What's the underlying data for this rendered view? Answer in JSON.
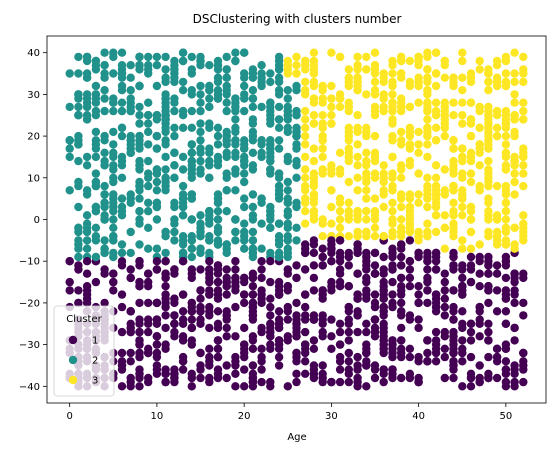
{
  "chart_data": {
    "type": "scatter",
    "title": "DSClustering with clusters number",
    "xlabel": "Age",
    "ylabel": "",
    "xlim": [
      -2.6,
      54.6
    ],
    "ylim": [
      -44,
      44
    ],
    "xticks": [
      0,
      10,
      20,
      30,
      40,
      50
    ],
    "yticks": [
      -40,
      -30,
      -20,
      -10,
      0,
      10,
      20,
      30,
      40
    ],
    "grid": false,
    "legend": {
      "title": "Cluster",
      "placement": "lower-left",
      "entries": [
        {
          "label": "1",
          "color": "#440154"
        },
        {
          "label": "2",
          "color": "#21918c"
        },
        {
          "label": "3",
          "color": "#fde725"
        }
      ]
    },
    "series": [
      {
        "name": "1",
        "color": "#440154",
        "x_range": [
          0,
          52
        ],
        "y_range": [
          -40,
          -1
        ],
        "description_region": "lower half below boundary"
      },
      {
        "name": "2",
        "color": "#21918c",
        "x_range": [
          0,
          27
        ],
        "y_range": [
          -9,
          40
        ]
      },
      {
        "name": "3",
        "color": "#fde725",
        "x_range": [
          23,
          52
        ],
        "y_range": [
          -7,
          40
        ]
      }
    ]
  }
}
